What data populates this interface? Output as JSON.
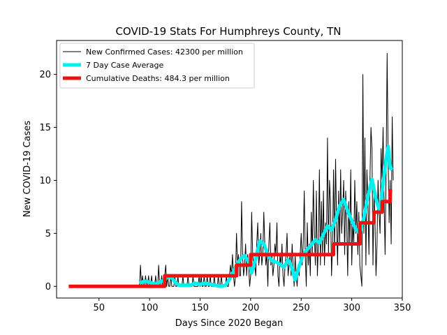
{
  "chart_data": {
    "type": "line",
    "title": "COVID-19 Stats For Humphreys County, TN",
    "xlabel": "Days Since 2020 Began",
    "ylabel": "New COVID-19 Cases",
    "xlim": [
      8,
      350
    ],
    "ylim": [
      -1.1,
      23.2
    ],
    "xticks": [
      50,
      100,
      150,
      200,
      250,
      300,
      350
    ],
    "yticks": [
      0,
      5,
      10,
      15,
      20
    ],
    "grid": false,
    "legend_position": "top-left",
    "series": [
      {
        "name": "New Confirmed Cases: 42300 per million",
        "color": "#000000",
        "points": [
          [
            90,
            0
          ],
          [
            91,
            2
          ],
          [
            92,
            0
          ],
          [
            93,
            1
          ],
          [
            94,
            0
          ],
          [
            95,
            0
          ],
          [
            96,
            1
          ],
          [
            97,
            0
          ],
          [
            98,
            0
          ],
          [
            99,
            1
          ],
          [
            100,
            0
          ],
          [
            101,
            0
          ],
          [
            102,
            1
          ],
          [
            103,
            0
          ],
          [
            104,
            0
          ],
          [
            105,
            0
          ],
          [
            106,
            1
          ],
          [
            107,
            0
          ],
          [
            108,
            0
          ],
          [
            109,
            2
          ],
          [
            110,
            0
          ],
          [
            111,
            0
          ],
          [
            112,
            1
          ],
          [
            113,
            0
          ],
          [
            114,
            0
          ],
          [
            115,
            1
          ],
          [
            116,
            2
          ],
          [
            117,
            0
          ],
          [
            118,
            1
          ],
          [
            119,
            0
          ],
          [
            120,
            0
          ],
          [
            121,
            1
          ],
          [
            122,
            0
          ],
          [
            123,
            0
          ],
          [
            124,
            0
          ],
          [
            125,
            1
          ],
          [
            126,
            0
          ],
          [
            127,
            0
          ],
          [
            128,
            1
          ],
          [
            129,
            0
          ],
          [
            130,
            0
          ],
          [
            131,
            0
          ],
          [
            132,
            0
          ],
          [
            133,
            1
          ],
          [
            134,
            0
          ],
          [
            135,
            0
          ],
          [
            136,
            0
          ],
          [
            137,
            0
          ],
          [
            138,
            1
          ],
          [
            139,
            0
          ],
          [
            140,
            0
          ],
          [
            141,
            0
          ],
          [
            142,
            0
          ],
          [
            143,
            1
          ],
          [
            144,
            0
          ],
          [
            145,
            0
          ],
          [
            146,
            0
          ],
          [
            147,
            0
          ],
          [
            148,
            0
          ],
          [
            149,
            1
          ],
          [
            150,
            0
          ],
          [
            151,
            1
          ],
          [
            152,
            0
          ],
          [
            153,
            0
          ],
          [
            154,
            1
          ],
          [
            155,
            0
          ],
          [
            156,
            0
          ],
          [
            157,
            1
          ],
          [
            158,
            0
          ],
          [
            159,
            0
          ],
          [
            160,
            1
          ],
          [
            161,
            0
          ],
          [
            162,
            0
          ],
          [
            163,
            0
          ],
          [
            164,
            1
          ],
          [
            165,
            0
          ],
          [
            166,
            0
          ],
          [
            167,
            0
          ],
          [
            168,
            1
          ],
          [
            169,
            0
          ],
          [
            170,
            0
          ],
          [
            171,
            1
          ],
          [
            172,
            0
          ],
          [
            173,
            0
          ],
          [
            174,
            0
          ],
          [
            175,
            0
          ],
          [
            176,
            1
          ],
          [
            177,
            0
          ],
          [
            178,
            0
          ],
          [
            179,
            1
          ],
          [
            180,
            2
          ],
          [
            181,
            1
          ],
          [
            182,
            3
          ],
          [
            183,
            1
          ],
          [
            184,
            0
          ],
          [
            185,
            1
          ],
          [
            186,
            5
          ],
          [
            187,
            2
          ],
          [
            188,
            3
          ],
          [
            189,
            1
          ],
          [
            190,
            1
          ],
          [
            191,
            8
          ],
          [
            192,
            3
          ],
          [
            193,
            1
          ],
          [
            194,
            2
          ],
          [
            195,
            4
          ],
          [
            196,
            1
          ],
          [
            197,
            3
          ],
          [
            198,
            2
          ],
          [
            199,
            0
          ],
          [
            200,
            1
          ],
          [
            201,
            7
          ],
          [
            202,
            3
          ],
          [
            203,
            2
          ],
          [
            204,
            2
          ],
          [
            205,
            1
          ],
          [
            206,
            4
          ],
          [
            207,
            6
          ],
          [
            208,
            2
          ],
          [
            209,
            3
          ],
          [
            210,
            5
          ],
          [
            211,
            2
          ],
          [
            212,
            3
          ],
          [
            213,
            7
          ],
          [
            214,
            4
          ],
          [
            215,
            2
          ],
          [
            216,
            3
          ],
          [
            217,
            0
          ],
          [
            218,
            4
          ],
          [
            219,
            6
          ],
          [
            220,
            2
          ],
          [
            221,
            3
          ],
          [
            222,
            1
          ],
          [
            223,
            2
          ],
          [
            224,
            4
          ],
          [
            225,
            3
          ],
          [
            226,
            6
          ],
          [
            227,
            1
          ],
          [
            228,
            0
          ],
          [
            229,
            3
          ],
          [
            230,
            2
          ],
          [
            231,
            4
          ],
          [
            232,
            1
          ],
          [
            233,
            0
          ],
          [
            234,
            2
          ],
          [
            235,
            3
          ],
          [
            236,
            5
          ],
          [
            237,
            1
          ],
          [
            238,
            2
          ],
          [
            239,
            3
          ],
          [
            240,
            1
          ],
          [
            241,
            4
          ],
          [
            242,
            2
          ],
          [
            243,
            0
          ],
          [
            244,
            3
          ],
          [
            245,
            1
          ],
          [
            246,
            0
          ],
          [
            247,
            2
          ],
          [
            248,
            1
          ],
          [
            249,
            3
          ],
          [
            250,
            5
          ],
          [
            251,
            2
          ],
          [
            252,
            4
          ],
          [
            253,
            9
          ],
          [
            254,
            3
          ],
          [
            255,
            0
          ],
          [
            256,
            6
          ],
          [
            257,
            2
          ],
          [
            258,
            4
          ],
          [
            259,
            1
          ],
          [
            260,
            7
          ],
          [
            261,
            3
          ],
          [
            262,
            10
          ],
          [
            263,
            5
          ],
          [
            264,
            2
          ],
          [
            265,
            9
          ],
          [
            266,
            1
          ],
          [
            267,
            4
          ],
          [
            268,
            11
          ],
          [
            269,
            2
          ],
          [
            270,
            8
          ],
          [
            271,
            3
          ],
          [
            272,
            9
          ],
          [
            273,
            2
          ],
          [
            274,
            6
          ],
          [
            275,
            4
          ],
          [
            276,
            14
          ],
          [
            277,
            3
          ],
          [
            278,
            10
          ],
          [
            279,
            8
          ],
          [
            280,
            1
          ],
          [
            281,
            4
          ],
          [
            282,
            11
          ],
          [
            283,
            3
          ],
          [
            284,
            12
          ],
          [
            285,
            6
          ],
          [
            286,
            2
          ],
          [
            287,
            9
          ],
          [
            288,
            4
          ],
          [
            289,
            11
          ],
          [
            290,
            5
          ],
          [
            291,
            7
          ],
          [
            292,
            10
          ],
          [
            293,
            3
          ],
          [
            294,
            9
          ],
          [
            295,
            6
          ],
          [
            296,
            1
          ],
          [
            297,
            8
          ],
          [
            298,
            4
          ],
          [
            299,
            11
          ],
          [
            300,
            2
          ],
          [
            301,
            6
          ],
          [
            302,
            4
          ],
          [
            303,
            10
          ],
          [
            304,
            5
          ],
          [
            305,
            8
          ],
          [
            306,
            3
          ],
          [
            307,
            7
          ],
          [
            308,
            2
          ],
          [
            309,
            1
          ],
          [
            310,
            0
          ],
          [
            311,
            20
          ],
          [
            312,
            5
          ],
          [
            313,
            14
          ],
          [
            314,
            2
          ],
          [
            315,
            11
          ],
          [
            316,
            8
          ],
          [
            317,
            3
          ],
          [
            318,
            10
          ],
          [
            319,
            15
          ],
          [
            320,
            13
          ],
          [
            321,
            2
          ],
          [
            322,
            9
          ],
          [
            323,
            6
          ],
          [
            324,
            1
          ],
          [
            325,
            4
          ],
          [
            326,
            10
          ],
          [
            327,
            7
          ],
          [
            328,
            5
          ],
          [
            329,
            13
          ],
          [
            330,
            10
          ],
          [
            331,
            15
          ],
          [
            332,
            8
          ],
          [
            333,
            3
          ],
          [
            334,
            11
          ],
          [
            335,
            22
          ],
          [
            336,
            12
          ],
          [
            337,
            6
          ],
          [
            338,
            10
          ],
          [
            339,
            4
          ],
          [
            340,
            16
          ],
          [
            341,
            10
          ]
        ]
      },
      {
        "name": "7 Day Case Average",
        "color": "#00f0f0",
        "points": [
          [
            90,
            0.3
          ],
          [
            95,
            0.5
          ],
          [
            100,
            0.4
          ],
          [
            105,
            0.2
          ],
          [
            110,
            0.4
          ],
          [
            115,
            0.6
          ],
          [
            118,
            0.9
          ],
          [
            122,
            0.8
          ],
          [
            126,
            0.3
          ],
          [
            130,
            0.1
          ],
          [
            135,
            0.1
          ],
          [
            140,
            0.1
          ],
          [
            145,
            0.3
          ],
          [
            150,
            0.2
          ],
          [
            155,
            0.3
          ],
          [
            160,
            0.2
          ],
          [
            165,
            0.1
          ],
          [
            170,
            0.0
          ],
          [
            175,
            0.1
          ],
          [
            178,
            0.5
          ],
          [
            182,
            1.2
          ],
          [
            186,
            2.0
          ],
          [
            190,
            2.6
          ],
          [
            194,
            2.9
          ],
          [
            198,
            2.3
          ],
          [
            201,
            1.3
          ],
          [
            205,
            2.6
          ],
          [
            209,
            4.3
          ],
          [
            213,
            4.0
          ],
          [
            217,
            3.0
          ],
          [
            221,
            2.4
          ],
          [
            225,
            2.3
          ],
          [
            229,
            2.1
          ],
          [
            233,
            1.8
          ],
          [
            237,
            2.5
          ],
          [
            240,
            2.0
          ],
          [
            244,
            0.6
          ],
          [
            248,
            1.9
          ],
          [
            252,
            3.0
          ],
          [
            256,
            3.5
          ],
          [
            260,
            3.9
          ],
          [
            264,
            4.4
          ],
          [
            268,
            4.1
          ],
          [
            272,
            4.9
          ],
          [
            276,
            5.7
          ],
          [
            280,
            5.3
          ],
          [
            284,
            6.3
          ],
          [
            288,
            7.6
          ],
          [
            292,
            8.2
          ],
          [
            296,
            7.1
          ],
          [
            300,
            6.2
          ],
          [
            304,
            5.4
          ],
          [
            308,
            5.0
          ],
          [
            312,
            6.5
          ],
          [
            316,
            8.5
          ],
          [
            320,
            10.1
          ],
          [
            324,
            8.2
          ],
          [
            328,
            7.0
          ],
          [
            331,
            9.7
          ],
          [
            334,
            12.0
          ],
          [
            336,
            13.2
          ],
          [
            338,
            11.2
          ],
          [
            340,
            11.0
          ]
        ]
      },
      {
        "name": "Cumulative Deaths: 484.3 per million",
        "color": "#ee1111",
        "points": [
          [
            20,
            0
          ],
          [
            115,
            0
          ],
          [
            115,
            1
          ],
          [
            186,
            1
          ],
          [
            186,
            2
          ],
          [
            200,
            2
          ],
          [
            200,
            3
          ],
          [
            282,
            3
          ],
          [
            282,
            4
          ],
          [
            308,
            4
          ],
          [
            308,
            6
          ],
          [
            322,
            6
          ],
          [
            322,
            7
          ],
          [
            330,
            7
          ],
          [
            330,
            8
          ],
          [
            338,
            8
          ],
          [
            338,
            9
          ],
          [
            340,
            9
          ]
        ]
      }
    ]
  }
}
